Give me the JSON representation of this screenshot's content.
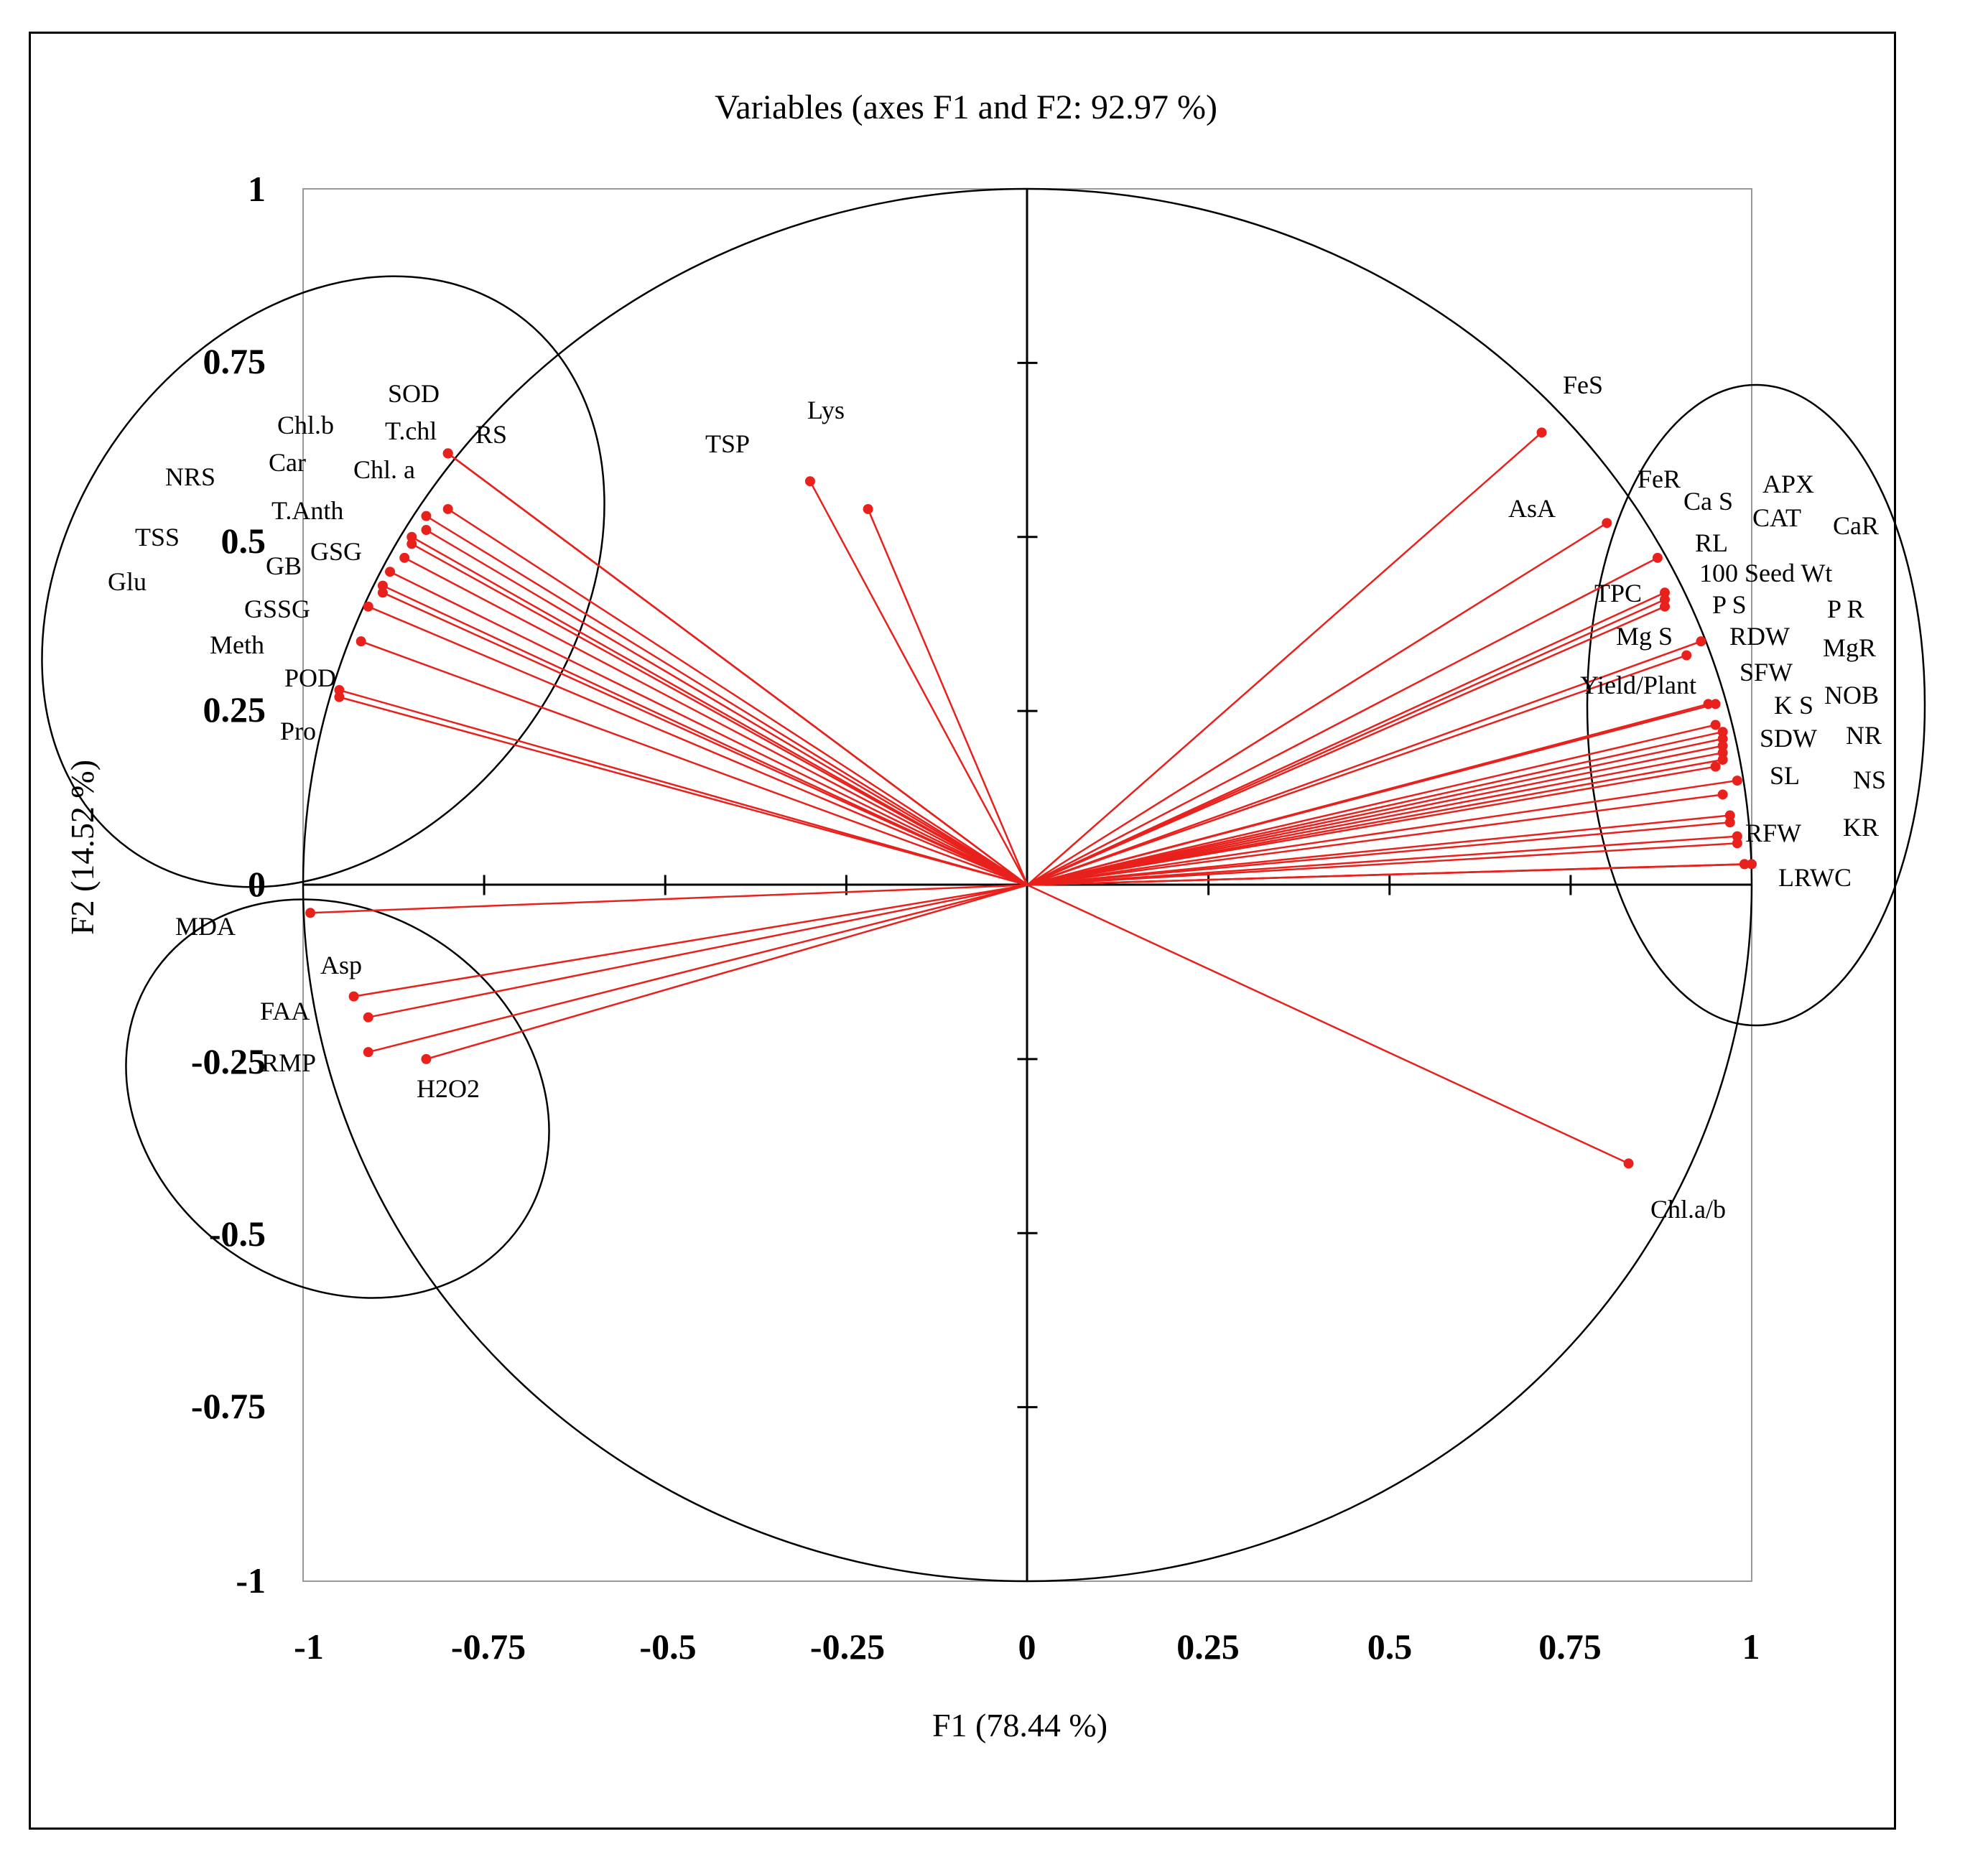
{
  "chart_data": {
    "type": "scatter",
    "subtype": "pca-correlation-circle",
    "title": "Variables (axes F1 and F2: 92.97 %)",
    "xlabel": "F1 (78.44 %)",
    "ylabel": "F2 (14.52 %)",
    "xlim": [
      -1,
      1
    ],
    "ylim": [
      -1,
      1
    ],
    "x_ticks": [
      "-1",
      "-0.75",
      "-0.5",
      "-0.25",
      "0",
      "0.25",
      "0.5",
      "0.75",
      "1"
    ],
    "y_ticks": [
      "1",
      "0.75",
      "0.5",
      "0.25",
      "0",
      "-0.25",
      "-0.5",
      "-0.75",
      "-1"
    ],
    "series_color": "#e8211d",
    "variables": [
      {
        "name": "SOD",
        "x": -0.8,
        "y": 0.62
      },
      {
        "name": "T.chl",
        "x": -0.8,
        "y": 0.62
      },
      {
        "name": "RS",
        "x": -0.8,
        "y": 0.62
      },
      {
        "name": "Chl.b",
        "x": -0.8,
        "y": 0.54
      },
      {
        "name": "Chl. a",
        "x": -0.83,
        "y": 0.53
      },
      {
        "name": "Car",
        "x": -0.83,
        "y": 0.51
      },
      {
        "name": "NRS",
        "x": -0.85,
        "y": 0.5
      },
      {
        "name": "T.Anth",
        "x": -0.85,
        "y": 0.49
      },
      {
        "name": "TSS",
        "x": -0.86,
        "y": 0.47
      },
      {
        "name": "GSG",
        "x": -0.88,
        "y": 0.45
      },
      {
        "name": "GB",
        "x": -0.89,
        "y": 0.43
      },
      {
        "name": "Glu",
        "x": -0.89,
        "y": 0.42
      },
      {
        "name": "GSSG",
        "x": -0.91,
        "y": 0.4
      },
      {
        "name": "Meth",
        "x": -0.92,
        "y": 0.35
      },
      {
        "name": "POD",
        "x": -0.95,
        "y": 0.28
      },
      {
        "name": "Pro",
        "x": -0.95,
        "y": 0.27
      },
      {
        "name": "TSP",
        "x": -0.3,
        "y": 0.58
      },
      {
        "name": "Lys",
        "x": -0.22,
        "y": 0.54
      },
      {
        "name": "MDA",
        "x": -0.99,
        "y": -0.04
      },
      {
        "name": "Asp",
        "x": -0.93,
        "y": -0.16
      },
      {
        "name": "FAA",
        "x": -0.91,
        "y": -0.19
      },
      {
        "name": "RMP",
        "x": -0.91,
        "y": -0.24
      },
      {
        "name": "H2O2",
        "x": -0.83,
        "y": -0.25
      },
      {
        "name": "FeS",
        "x": 0.71,
        "y": 0.65
      },
      {
        "name": "AsA",
        "x": 0.8,
        "y": 0.52
      },
      {
        "name": "FeR",
        "x": 0.87,
        "y": 0.47
      },
      {
        "name": "Ca S",
        "x": 0.88,
        "y": 0.42
      },
      {
        "name": "APX",
        "x": 0.88,
        "y": 0.41
      },
      {
        "name": "CAT",
        "x": 0.88,
        "y": 0.4
      },
      {
        "name": "CaR",
        "x": 0.93,
        "y": 0.35
      },
      {
        "name": "RL",
        "x": 0.91,
        "y": 0.33
      },
      {
        "name": "100 Seed Wt",
        "x": 0.95,
        "y": 0.26
      },
      {
        "name": "TPC",
        "x": 0.94,
        "y": 0.26
      },
      {
        "name": "P S",
        "x": 0.95,
        "y": 0.23
      },
      {
        "name": "P R",
        "x": 0.96,
        "y": 0.22
      },
      {
        "name": "Mg S",
        "x": 0.96,
        "y": 0.21
      },
      {
        "name": "RDW",
        "x": 0.96,
        "y": 0.2
      },
      {
        "name": "MgR",
        "x": 0.96,
        "y": 0.19
      },
      {
        "name": "SFW",
        "x": 0.96,
        "y": 0.18
      },
      {
        "name": "Yield/Plant",
        "x": 0.95,
        "y": 0.17
      },
      {
        "name": "K S",
        "x": 0.98,
        "y": 0.15
      },
      {
        "name": "NOB",
        "x": 0.96,
        "y": 0.13
      },
      {
        "name": "SDW",
        "x": 0.97,
        "y": 0.1
      },
      {
        "name": "NR",
        "x": 0.97,
        "y": 0.09
      },
      {
        "name": "SL",
        "x": 0.98,
        "y": 0.07
      },
      {
        "name": "NS",
        "x": 0.98,
        "y": 0.06
      },
      {
        "name": "RFW",
        "x": 0.99,
        "y": 0.03
      },
      {
        "name": "KR",
        "x": 0.99,
        "y": 0.03
      },
      {
        "name": "LRWC",
        "x": 1.0,
        "y": 0.03
      },
      {
        "name": "Chl.a/b",
        "x": 0.83,
        "y": -0.4
      }
    ]
  }
}
